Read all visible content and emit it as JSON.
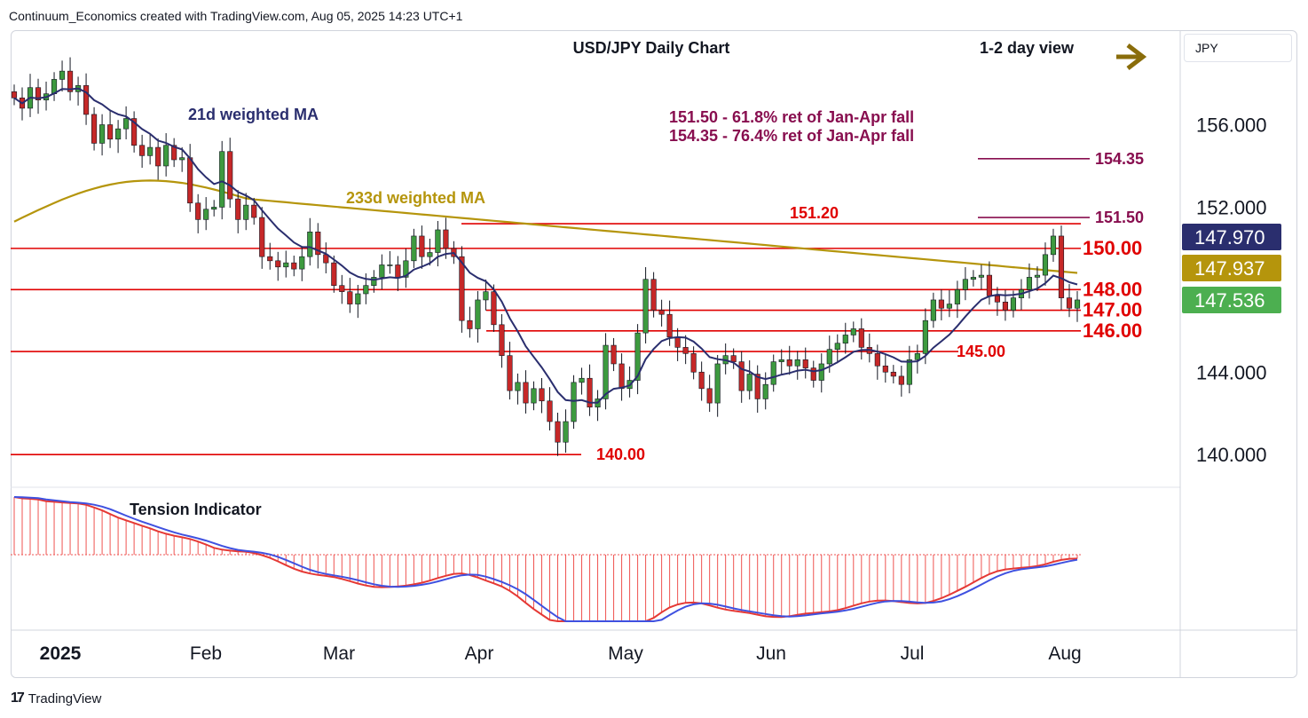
{
  "header": {
    "attribution": "Continuum_Economics created with TradingView.com, Aug 05, 2025 14:23 UTC+1"
  },
  "footer": {
    "brand": "TradingView",
    "logo_glyph": "17"
  },
  "toolbar": {
    "currency": "JPY"
  },
  "chart_data": {
    "type": "candlestick",
    "title": "USD/JPY Daily Chart",
    "view_label": "1-2 day view",
    "view_direction": "sideways-arrow-right",
    "x_labels": [
      "2025",
      "Feb",
      "Mar",
      "Apr",
      "May",
      "Jun",
      "Jul",
      "Aug"
    ],
    "y_ticks": [
      "156.000",
      "152.000",
      "144.000",
      "140.000"
    ],
    "ylim": [
      138.5,
      160.5
    ],
    "annotations": {
      "ma21_label": "21d weighted MA",
      "ma233_label": "233d weighted MA",
      "retrace_1": "151.50 - 61.8% ret of Jan-Apr fall",
      "retrace_2": "154.35 - 76.4% ret of Jan-Apr fall"
    },
    "levels": [
      {
        "label": "154.35",
        "value": 154.35,
        "color": "#880e4f"
      },
      {
        "label": "151.50",
        "value": 151.5,
        "color": "#880e4f"
      },
      {
        "label": "151.20",
        "value": 151.2,
        "color": "#e00000"
      },
      {
        "label": "150.00",
        "value": 150.0,
        "color": "#e00000"
      },
      {
        "label": "148.00",
        "value": 148.0,
        "color": "#e00000"
      },
      {
        "label": "147.00",
        "value": 147.0,
        "color": "#e00000"
      },
      {
        "label": "146.00",
        "value": 146.0,
        "color": "#e00000"
      },
      {
        "label": "145.00",
        "value": 145.0,
        "color": "#e00000"
      },
      {
        "label": "140.00",
        "value": 140.0,
        "color": "#e00000"
      }
    ],
    "price_badges": [
      {
        "label": "147.970",
        "color": "#2a2e6e"
      },
      {
        "label": "147.937",
        "color": "#b5950c"
      },
      {
        "label": "147.536",
        "color": "#4caf50"
      }
    ],
    "closes": [
      157.3,
      156.8,
      157.8,
      157.2,
      157.5,
      158.2,
      158.6,
      157.6,
      157.9,
      156.5,
      155.1,
      156.0,
      155.3,
      155.8,
      156.3,
      155.0,
      154.5,
      154.9,
      154.0,
      155.0,
      154.3,
      154.4,
      152.2,
      151.4,
      151.9,
      152.0,
      154.7,
      152.4,
      151.4,
      152.1,
      151.5,
      149.6,
      149.4,
      149.1,
      149.3,
      149.0,
      149.6,
      150.8,
      149.7,
      149.3,
      148.2,
      147.9,
      147.3,
      147.8,
      148.2,
      148.6,
      149.2,
      149.2,
      148.6,
      149.4,
      150.6,
      149.6,
      149.8,
      150.9,
      150.0,
      149.6,
      146.5,
      146.1,
      147.5,
      147.9,
      146.3,
      144.8,
      143.1,
      143.5,
      142.5,
      143.2,
      142.6,
      141.6,
      140.6,
      141.6,
      143.5,
      143.7,
      142.3,
      142.7,
      145.3,
      144.4,
      143.2,
      143.6,
      145.9,
      148.5,
      147.0,
      146.8,
      145.7,
      145.2,
      144.9,
      144.0,
      143.2,
      142.5,
      144.4,
      144.8,
      144.5,
      143.1,
      143.9,
      142.7,
      143.4,
      144.5,
      144.6,
      144.3,
      144.6,
      144.2,
      143.6,
      144.4,
      145.1,
      145.4,
      145.8,
      146.1,
      145.2,
      144.9,
      144.3,
      144.0,
      143.8,
      143.4,
      144.6,
      144.9,
      146.5,
      147.5,
      147.1,
      147.3,
      148.0,
      148.5,
      148.6,
      148.7,
      147.7,
      147.4,
      147.0,
      147.6,
      148.0,
      148.6,
      148.7,
      149.7,
      150.6,
      147.6,
      147.1,
      147.5
    ]
  }
}
